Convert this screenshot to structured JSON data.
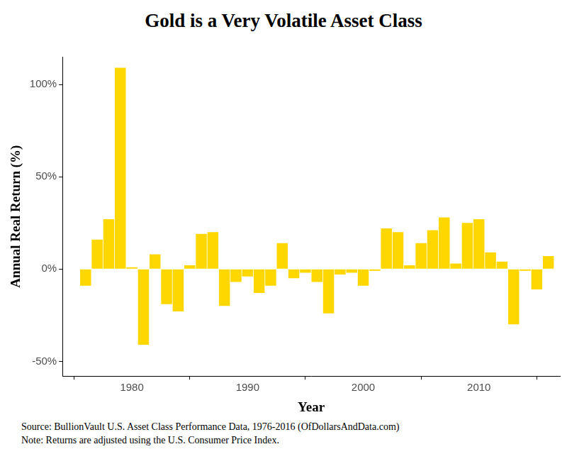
{
  "chart_data": {
    "type": "bar",
    "title": "Gold is a Very Volatile Asset Class",
    "x_label": "Year",
    "y_label": "Annual Real Return (%)",
    "caption": [
      "Source:  BullionVault U.S. Asset Class Performance Data, 1976-2016 (OfDollarsAndData.com)",
      "Note:  Returns are adjusted using the U.S. Consumer Price Index."
    ],
    "x": [
      1976,
      1977,
      1978,
      1979,
      1980,
      1981,
      1982,
      1983,
      1984,
      1985,
      1986,
      1987,
      1988,
      1989,
      1990,
      1991,
      1992,
      1993,
      1994,
      1995,
      1996,
      1997,
      1998,
      1999,
      2000,
      2001,
      2002,
      2003,
      2004,
      2005,
      2006,
      2007,
      2008,
      2009,
      2010,
      2011,
      2012,
      2013,
      2014,
      2015,
      2016
    ],
    "values": [
      -9,
      16,
      27,
      109,
      1,
      -41,
      8,
      -19,
      -23,
      2,
      19,
      20,
      -20,
      -7,
      -4,
      -13,
      -9,
      14,
      -5,
      -2,
      -7,
      -24,
      -3,
      -2,
      -9,
      -1,
      22,
      20,
      2,
      14,
      21,
      28,
      3,
      25,
      27,
      9,
      4,
      -30,
      -1,
      -11,
      7
    ],
    "color": "#ffd700",
    "xlim": [
      1974,
      2017
    ],
    "xticks": [
      1980,
      1990,
      2000,
      2010
    ],
    "ylim": [
      -58,
      115
    ],
    "yticks": [
      {
        "value": -50,
        "label": "-50%"
      },
      {
        "value": 0,
        "label": "0%"
      },
      {
        "value": 50,
        "label": "50%"
      },
      {
        "value": 100,
        "label": "100%"
      }
    ],
    "grid": false
  }
}
